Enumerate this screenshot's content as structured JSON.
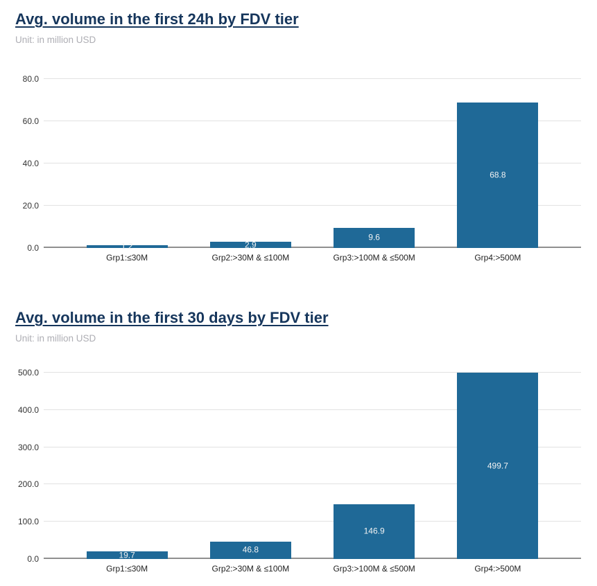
{
  "page": {
    "background": "#ffffff"
  },
  "colors": {
    "title": "#16365c",
    "subtitle": "#aeaeb4",
    "bar": "#1f6997",
    "bar_label": "#f2f2f2",
    "gridline": "#e2e2e2",
    "baseline": "#8f8f8f",
    "axis_text": "#333333",
    "category_text": "#1f1f1f"
  },
  "chart_data": [
    {
      "type": "bar",
      "title": "Avg. volume in the first 24h by FDV tier",
      "subtitle": "Unit: in million USD",
      "categories": [
        "Grp1:≤30M",
        "Grp2:>30M & ≤100M",
        "Grp3:>100M & ≤500M",
        "Grp4:>500M"
      ],
      "values": [
        1.2,
        2.9,
        9.6,
        68.8
      ],
      "value_labels": [
        "1.2",
        "2.9",
        "9.6",
        "68.8"
      ],
      "ylim": [
        0,
        80
      ],
      "yticks": [
        0,
        20,
        40,
        60,
        80
      ],
      "ytick_labels": [
        "0.0",
        "20.0",
        "40.0",
        "60.0",
        "80.0"
      ],
      "xlabel": "",
      "ylabel": "",
      "grid": true,
      "legend": "none"
    },
    {
      "type": "bar",
      "title": "Avg. volume in the first 30 days by FDV tier",
      "subtitle": "Unit: in million USD",
      "categories": [
        "Grp1:≤30M",
        "Grp2:>30M & ≤100M",
        "Grp3:>100M & ≤500M",
        "Grp4:>500M"
      ],
      "values": [
        19.7,
        46.8,
        146.9,
        499.7
      ],
      "value_labels": [
        "19.7",
        "46.8",
        "146.9",
        "499.7"
      ],
      "ylim": [
        0,
        500
      ],
      "yticks": [
        0,
        100,
        200,
        300,
        400,
        500
      ],
      "ytick_labels": [
        "0.0",
        "100.0",
        "200.0",
        "300.0",
        "400.0",
        "500.0"
      ],
      "xlabel": "",
      "ylabel": "",
      "grid": true,
      "legend": "none"
    }
  ]
}
